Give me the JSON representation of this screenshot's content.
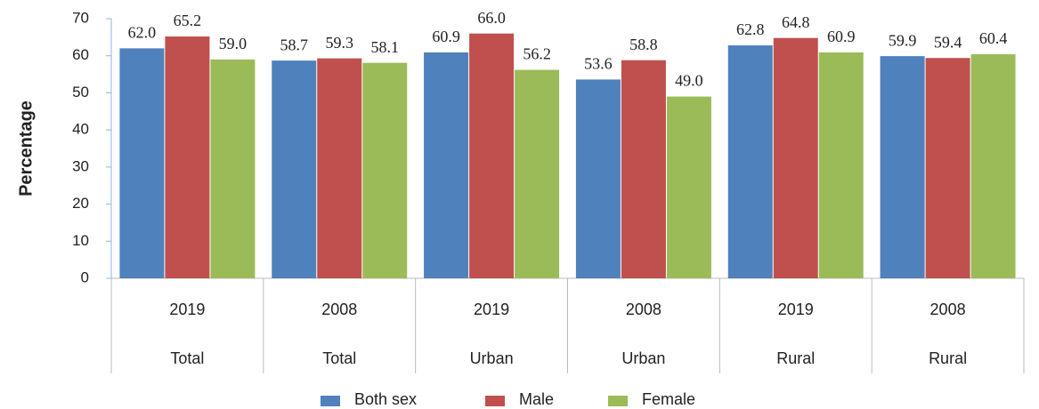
{
  "chart_data": {
    "type": "bar",
    "y_label": "Percentage",
    "categories": [
      "2019",
      "2008",
      "2019",
      "2008",
      "2019",
      "2008"
    ],
    "groups": [
      "Total",
      "Total",
      "Urban",
      "Urban",
      "Rural",
      "Rural"
    ],
    "series": [
      {
        "name": "Both sex",
        "color": "#4f81bd",
        "values": [
          62.0,
          58.7,
          60.9,
          53.6,
          62.8,
          59.9
        ],
        "value_labels": [
          "62.0",
          "58.7",
          "60.9",
          "53.6",
          "62.8",
          "59.9"
        ]
      },
      {
        "name": "Male",
        "color": "#c0504d",
        "values": [
          65.2,
          59.3,
          66.0,
          58.8,
          64.8,
          59.4
        ],
        "value_labels": [
          "65.2",
          "59.3",
          "66.0",
          "58.8",
          "64.8",
          "59.4"
        ]
      },
      {
        "name": "Female",
        "color": "#9bbb59",
        "values": [
          59.0,
          58.1,
          56.2,
          49.0,
          60.9,
          60.4
        ],
        "value_labels": [
          "59.0",
          "58.1",
          "56.2",
          "49.0",
          "60.9",
          "60.4"
        ]
      }
    ],
    "ylim": [
      0,
      70
    ],
    "yticks": [
      0,
      10,
      20,
      30,
      40,
      50,
      60,
      70
    ],
    "grid": false
  }
}
